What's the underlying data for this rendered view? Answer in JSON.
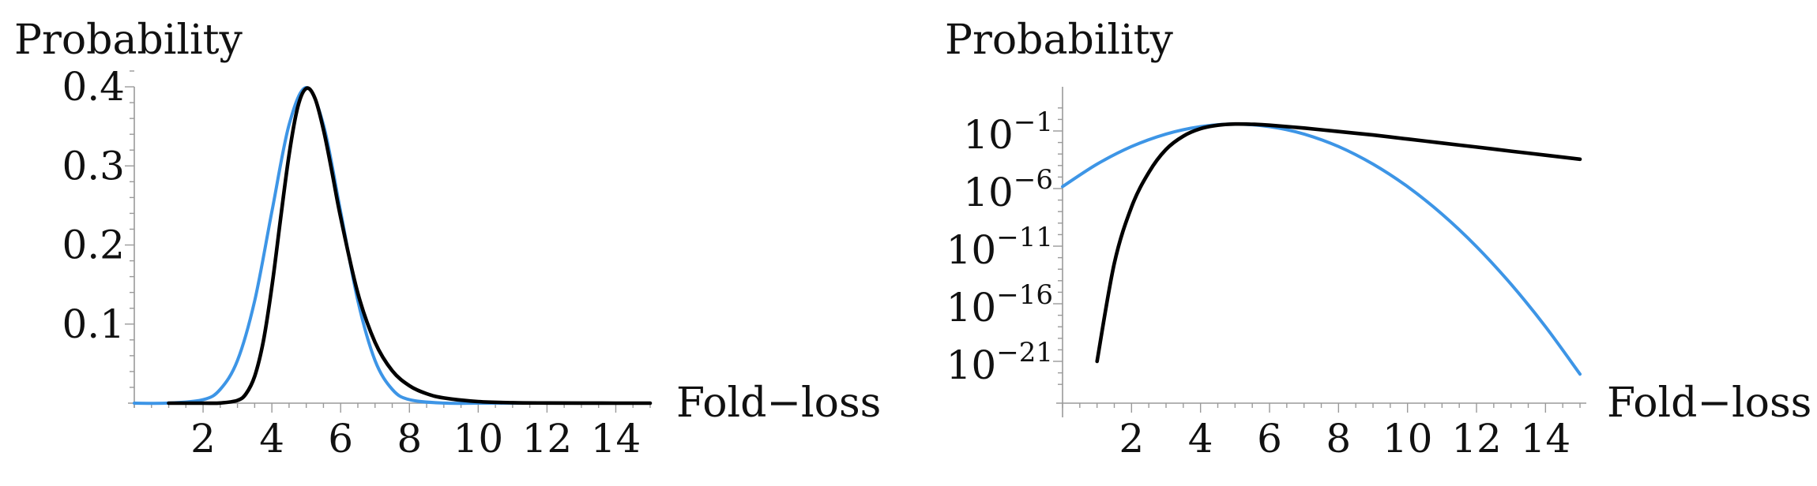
{
  "chart_data": [
    {
      "type": "line",
      "ylabel": "Probability",
      "xlabel": "Fold−loss",
      "xlim": [
        0,
        15
      ],
      "ylim": [
        0,
        0.42
      ],
      "x_ticks": [
        2,
        4,
        6,
        8,
        10,
        12,
        14
      ],
      "y_ticks": [
        {
          "value": 0.1,
          "label": "0.1"
        },
        {
          "value": 0.2,
          "label": "0.2"
        },
        {
          "value": 0.3,
          "label": "0.3"
        },
        {
          "value": 0.4,
          "label": "0.4"
        }
      ],
      "log_y": false,
      "grid": false,
      "colors": {
        "blue": "#3d95e6",
        "black": "#000000"
      },
      "series": [
        {
          "color": "blue",
          "x": [
            0,
            1,
            2,
            2.5,
            3,
            3.5,
            4,
            4.5,
            5,
            5.5,
            6,
            6.5,
            7,
            7.5,
            8,
            9,
            10,
            11,
            12,
            13,
            14,
            15
          ],
          "y": [
            0.0,
            0.0001,
            0.0044,
            0.0175,
            0.054,
            0.1295,
            0.242,
            0.352,
            0.399,
            0.352,
            0.242,
            0.1295,
            0.054,
            0.0175,
            0.0044,
            0.0001,
            0.0,
            0.0,
            0.0,
            0.0,
            0.0,
            0.0
          ]
        },
        {
          "color": "black",
          "x": [
            1,
            2,
            2.5,
            3,
            3.25,
            3.5,
            3.75,
            4,
            4.25,
            4.5,
            4.75,
            5,
            5.25,
            5.5,
            5.75,
            6,
            6.5,
            7,
            7.5,
            8,
            8.5,
            9,
            10,
            11,
            12,
            13,
            14,
            15
          ],
          "y": [
            0.0,
            0.0,
            0.0002,
            0.0035,
            0.012,
            0.034,
            0.078,
            0.147,
            0.232,
            0.314,
            0.374,
            0.398,
            0.386,
            0.346,
            0.292,
            0.235,
            0.139,
            0.077,
            0.041,
            0.022,
            0.012,
            0.0066,
            0.002,
            0.0006,
            0.0002,
            0.0001,
            0.0,
            0.0
          ]
        }
      ]
    },
    {
      "type": "line",
      "ylabel": "Probability",
      "xlabel": "Fold−loss",
      "xlim": [
        0,
        15
      ],
      "ylim_log10": [
        -22.5,
        1.5
      ],
      "x_ticks": [
        2,
        4,
        6,
        8,
        10,
        12,
        14
      ],
      "y_ticks": [
        {
          "exp": -1,
          "label_base": "10",
          "label_exp": "−1"
        },
        {
          "exp": -6,
          "label_base": "10",
          "label_exp": "−6"
        },
        {
          "exp": -11,
          "label_base": "10",
          "label_exp": "−11"
        },
        {
          "exp": -16,
          "label_base": "10",
          "label_exp": "−16"
        },
        {
          "exp": -21,
          "label_base": "10",
          "label_exp": "−21"
        }
      ],
      "log_y": true,
      "grid": false,
      "colors": {
        "blue": "#3d95e6",
        "black": "#000000"
      },
      "series": [
        {
          "color": "blue",
          "x": [
            0,
            1,
            2,
            3,
            4,
            5,
            6,
            7,
            8,
            9,
            10,
            11,
            12,
            13,
            14,
            15
          ],
          "log10_y": [
            -5.83,
            -3.88,
            -2.35,
            -1.27,
            -0.62,
            -0.4,
            -0.62,
            -1.27,
            -2.35,
            -3.88,
            -5.83,
            -8.22,
            -11.04,
            -14.3,
            -17.99,
            -22.11
          ]
        },
        {
          "color": "black",
          "x": [
            1,
            1.5,
            2,
            2.5,
            3,
            3.5,
            4,
            4.5,
            5,
            5.5,
            6,
            7,
            8,
            9,
            10,
            11,
            12,
            13,
            14,
            15
          ],
          "log10_y": [
            -21.0,
            -12.5,
            -7.6,
            -4.6,
            -2.6,
            -1.45,
            -0.8,
            -0.5,
            -0.4,
            -0.42,
            -0.5,
            -0.75,
            -1.05,
            -1.35,
            -1.7,
            -2.05,
            -2.4,
            -2.75,
            -3.1,
            -3.45
          ]
        }
      ]
    }
  ]
}
